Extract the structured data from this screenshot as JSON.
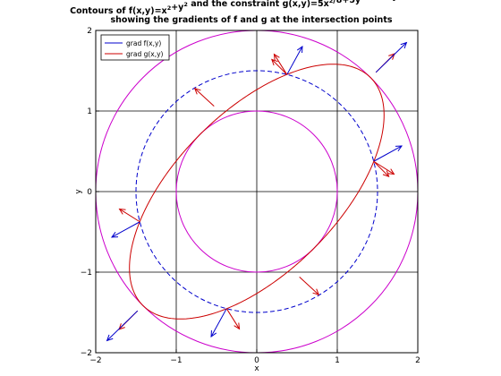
{
  "chart_data": {
    "type": "line",
    "title_line1": {
      "parts": [
        {
          "text": "Contours of f(x,y)=x",
          "sup": false
        },
        {
          "text": "2",
          "sup": true
        },
        {
          "text": "+y",
          "sup": false
        },
        {
          "text": "2",
          "sup": true
        },
        {
          "text": " and the constraint g(x,y)=5x",
          "sup": false
        },
        {
          "text": "2",
          "sup": true
        },
        {
          "text": "/8+5y",
          "sup": false
        },
        {
          "text": "2",
          "sup": true
        },
        {
          "text": "/8−3xy/4−1=0",
          "sup": false
        }
      ]
    },
    "title_line2": "showing the gradients of f and g at the intersection points",
    "xlabel": "x",
    "ylabel": "y",
    "xlim": [
      -2,
      2
    ],
    "ylim": [
      -2,
      2
    ],
    "xticks": [
      -2,
      -1,
      0,
      1,
      2
    ],
    "yticks": [
      -2,
      -1,
      0,
      1,
      2
    ],
    "xtick_labels": [
      "−2",
      "−1",
      "0",
      "1",
      "2"
    ],
    "ytick_labels": [
      "−2",
      "−1",
      "0",
      "1",
      "2"
    ],
    "grid": true,
    "legend": {
      "position": "top-left",
      "entries": [
        {
          "label": "grad f(x,y)",
          "color": "#0000cc"
        },
        {
          "label": "grad g(x,y)",
          "color": "#cc0000"
        }
      ]
    },
    "contours_f": [
      {
        "radius": 1,
        "color": "#cc00cc",
        "style": "solid"
      },
      {
        "radius": 1.5,
        "color": "#0000cc",
        "style": "dashed"
      },
      {
        "radius": 2,
        "color": "#cc00cc",
        "style": "solid"
      }
    ],
    "constraint": {
      "equation": "5x^2/8+5y^2/8-3xy/4-1=0",
      "a": 0.625,
      "b": -0.375,
      "c": 0.625,
      "color": "#cc0000"
    },
    "intersection_points": [
      {
        "x": 0.375,
        "y": 1.452
      },
      {
        "x": 1.452,
        "y": 0.375
      },
      {
        "x": -0.375,
        "y": -1.452
      },
      {
        "x": -1.452,
        "y": -0.375
      }
    ],
    "gradient_vectors": [
      {
        "point": 0,
        "fx": 0.191,
        "fy": 0.348,
        "gx": -0.159,
        "gy": 0.253
      },
      {
        "point": 1,
        "fx": 0.348,
        "fy": 0.191,
        "gx": 0.253,
        "gy": -0.159
      },
      {
        "point": 2,
        "fx": -0.191,
        "fy": -0.348,
        "gx": 0.159,
        "gy": -0.253
      },
      {
        "point": 3,
        "fx": -0.348,
        "fy": -0.191,
        "gx": -0.253,
        "gy": 0.159
      },
      {
        "point": 0,
        "fx": 0,
        "fy": 0,
        "gx": -0.188,
        "gy": 0.188
      },
      {
        "point": 1,
        "fx": 0,
        "fy": 0,
        "gx": 0.188,
        "gy": -0.188
      }
    ],
    "extra_arrows": [
      {
        "x0": 1.48,
        "y0": 1.48,
        "dx": 0.23,
        "dy": 0.23,
        "color": "#cc0000",
        "kind": "short"
      },
      {
        "x0": -1.48,
        "y0": -1.48,
        "dx": -0.23,
        "dy": -0.23,
        "color": "#cc0000",
        "kind": "short"
      },
      {
        "x0": -0.53,
        "y0": 1.06,
        "dx": -0.24,
        "dy": 0.22,
        "color": "#cc0000",
        "kind": "gradg"
      },
      {
        "x0": 0.53,
        "y0": -1.06,
        "dx": 0.24,
        "dy": -0.22,
        "color": "#cc0000",
        "kind": "gradg"
      },
      {
        "x0": 1.48,
        "y0": 1.48,
        "dx": 0.38,
        "dy": 0.37,
        "color": "#0000cc",
        "kind": "gradf"
      },
      {
        "x0": -1.48,
        "y0": -1.48,
        "dx": -0.38,
        "dy": -0.37,
        "color": "#0000cc",
        "kind": "gradf"
      }
    ]
  }
}
